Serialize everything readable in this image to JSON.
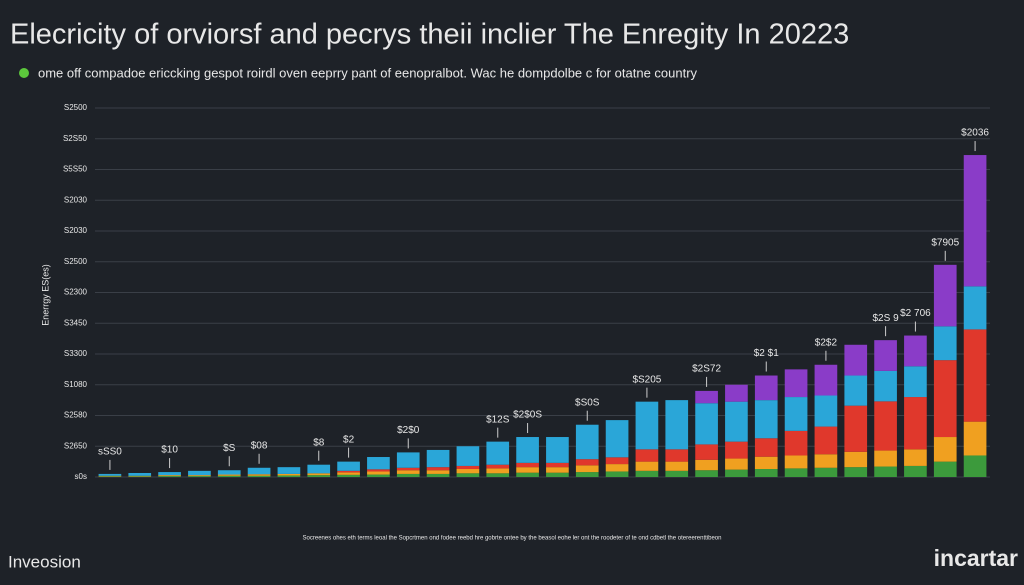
{
  "chart_data": {
    "type": "stacked-bar",
    "title": "Elecricity of orviorsf and pecrys theii inclier The Enregity In 20223",
    "subtitle": "ome off compadoe ericcking gespot roirdl oven eeprry pant of eenopralbot. Wac he dompdolbe c for otatne country",
    "y_label": "Enerrgy ES(es)",
    "footnote": "Socreenes ohes eth terms leoal the Sopcrtmen ond fodee reebd hre gobrte ontee by the beasol eohe ler ont the roodeter of te ond cdbetl the otereerenttibeon",
    "brand_left": "Inveosion",
    "brand_right": "incartar",
    "categories": [
      null,
      null,
      null,
      null,
      null,
      null,
      null,
      null,
      null,
      null,
      null,
      null,
      null,
      null,
      null,
      null,
      null,
      null,
      null,
      null,
      null,
      null,
      null,
      null,
      null,
      null,
      null,
      null,
      null,
      null
    ],
    "bar_labels": [
      "sSS0",
      null,
      "$10",
      null,
      "$S",
      "$08",
      null,
      "$8",
      "$2",
      null,
      "$2$0",
      null,
      null,
      "$12S",
      "$2$0S",
      null,
      "$S0S",
      null,
      "$S205",
      null,
      "$2S72",
      null,
      "$2 $1",
      null,
      "$2$2",
      null,
      "$2S 9",
      "$2 706",
      "$7905",
      "$2036"
    ],
    "series": [
      {
        "color": "#3c9a3c",
        "values": [
          2,
          2,
          3,
          3,
          4,
          4,
          5,
          6,
          7,
          8,
          10,
          10,
          12,
          12,
          14,
          14,
          16,
          18,
          20,
          20,
          22,
          24,
          26,
          28,
          30,
          32,
          34,
          36,
          50,
          70
        ]
      },
      {
        "color": "#f0a020",
        "values": [
          2,
          2,
          3,
          3,
          4,
          5,
          5,
          6,
          8,
          10,
          12,
          12,
          14,
          16,
          18,
          18,
          22,
          24,
          30,
          30,
          34,
          36,
          40,
          42,
          44,
          50,
          52,
          54,
          80,
          110
        ]
      },
      {
        "color": "#e0382c",
        "values": [
          0,
          0,
          0,
          0,
          0,
          0,
          0,
          0,
          5,
          7,
          8,
          10,
          10,
          12,
          14,
          14,
          20,
          22,
          40,
          40,
          50,
          55,
          60,
          80,
          90,
          150,
          160,
          170,
          250,
          300
        ]
      },
      {
        "color": "#2aa6d8",
        "values": [
          6,
          9,
          10,
          14,
          14,
          21,
          22,
          28,
          30,
          40,
          50,
          56,
          64,
          75,
          84,
          84,
          112,
          121,
          155,
          160,
          134,
          130,
          124,
          110,
          101,
          98,
          99,
          100,
          110,
          140
        ]
      },
      {
        "color": "#8a3cc8",
        "values": [
          0,
          0,
          0,
          0,
          0,
          0,
          0,
          0,
          0,
          0,
          0,
          0,
          0,
          0,
          0,
          0,
          0,
          0,
          0,
          0,
          40,
          55,
          80,
          90,
          100,
          100,
          100,
          100,
          200,
          427
        ]
      }
    ],
    "ylim": [
      0,
      1200
    ],
    "yticks": [
      {
        "value": 0,
        "label": "s0s"
      },
      {
        "value": 100,
        "label": "S2650"
      },
      {
        "value": 200,
        "label": "S2580"
      },
      {
        "value": 300,
        "label": "S1080"
      },
      {
        "value": 400,
        "label": "S3300"
      },
      {
        "value": 500,
        "label": "S3450"
      },
      {
        "value": 600,
        "label": "S2300"
      },
      {
        "value": 700,
        "label": "S2500"
      },
      {
        "value": 800,
        "label": "S2030"
      },
      {
        "value": 900,
        "label": "S2030"
      },
      {
        "value": 1000,
        "label": "S5S50"
      },
      {
        "value": 1100,
        "label": "S2S50"
      },
      {
        "value": 1200,
        "label": "S2500"
      }
    ],
    "grid": true
  }
}
